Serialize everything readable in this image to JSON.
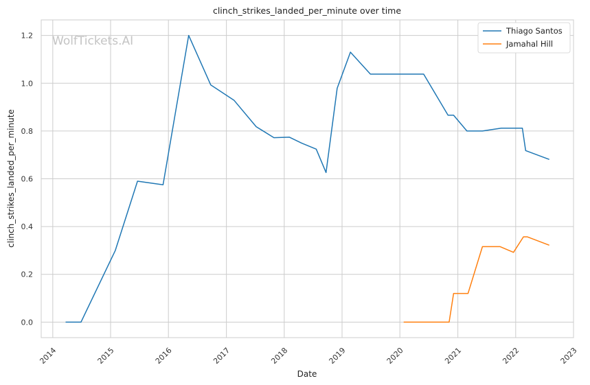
{
  "watermark": "WolfTickets.AI",
  "chart_data": {
    "type": "line",
    "title": "clinch_strikes_landed_per_minute over time",
    "xlabel": "Date",
    "ylabel": "clinch_strikes_landed_per_minute",
    "xlim": [
      "2013-10-20",
      "2023-01-01"
    ],
    "ylim": [
      -0.065,
      1.265
    ],
    "x_ticks": [
      "2014",
      "2015",
      "2016",
      "2017",
      "2018",
      "2019",
      "2020",
      "2021",
      "2022",
      "2023"
    ],
    "y_ticks": [
      "0.0",
      "0.2",
      "0.4",
      "0.6",
      "0.8",
      "1.0",
      "1.2"
    ],
    "grid": true,
    "legend_position": "top-right",
    "series": [
      {
        "name": "Thiago Santos",
        "color": "#1f77b4",
        "points": [
          [
            "2014-03-23",
            0.0
          ],
          [
            "2014-06-28",
            0.0
          ],
          [
            "2015-01-31",
            0.3
          ],
          [
            "2015-06-20",
            0.59
          ],
          [
            "2015-11-28",
            0.575
          ],
          [
            "2016-05-08",
            1.2
          ],
          [
            "2016-09-24",
            0.993
          ],
          [
            "2017-02-19",
            0.928
          ],
          [
            "2017-07-08",
            0.818
          ],
          [
            "2017-10-28",
            0.772
          ],
          [
            "2018-02-03",
            0.774
          ],
          [
            "2018-04-21",
            0.749
          ],
          [
            "2018-07-22",
            0.724
          ],
          [
            "2018-09-22",
            0.626
          ],
          [
            "2018-12-01",
            0.979
          ],
          [
            "2019-02-23",
            1.13
          ],
          [
            "2019-06-29",
            1.038
          ],
          [
            "2020-03-14",
            1.038
          ],
          [
            "2020-05-30",
            1.038
          ],
          [
            "2020-10-31",
            0.866
          ],
          [
            "2020-12-05",
            0.866
          ],
          [
            "2021-02-27",
            0.8
          ],
          [
            "2021-06-05",
            0.8
          ],
          [
            "2021-10-02",
            0.812
          ],
          [
            "2022-02-12",
            0.812
          ],
          [
            "2022-03-05",
            0.718
          ],
          [
            "2022-08-01",
            0.681
          ]
        ]
      },
      {
        "name": "Jamahal Hill",
        "color": "#ff7f0e",
        "points": [
          [
            "2020-01-25",
            0.0
          ],
          [
            "2020-11-07",
            0.0
          ],
          [
            "2020-12-05",
            0.12
          ],
          [
            "2021-03-06",
            0.12
          ],
          [
            "2021-06-05",
            0.316
          ],
          [
            "2021-09-25",
            0.316
          ],
          [
            "2021-12-18",
            0.292
          ],
          [
            "2022-02-19",
            0.357
          ],
          [
            "2022-03-15",
            0.357
          ],
          [
            "2022-08-01",
            0.322
          ]
        ]
      }
    ]
  }
}
